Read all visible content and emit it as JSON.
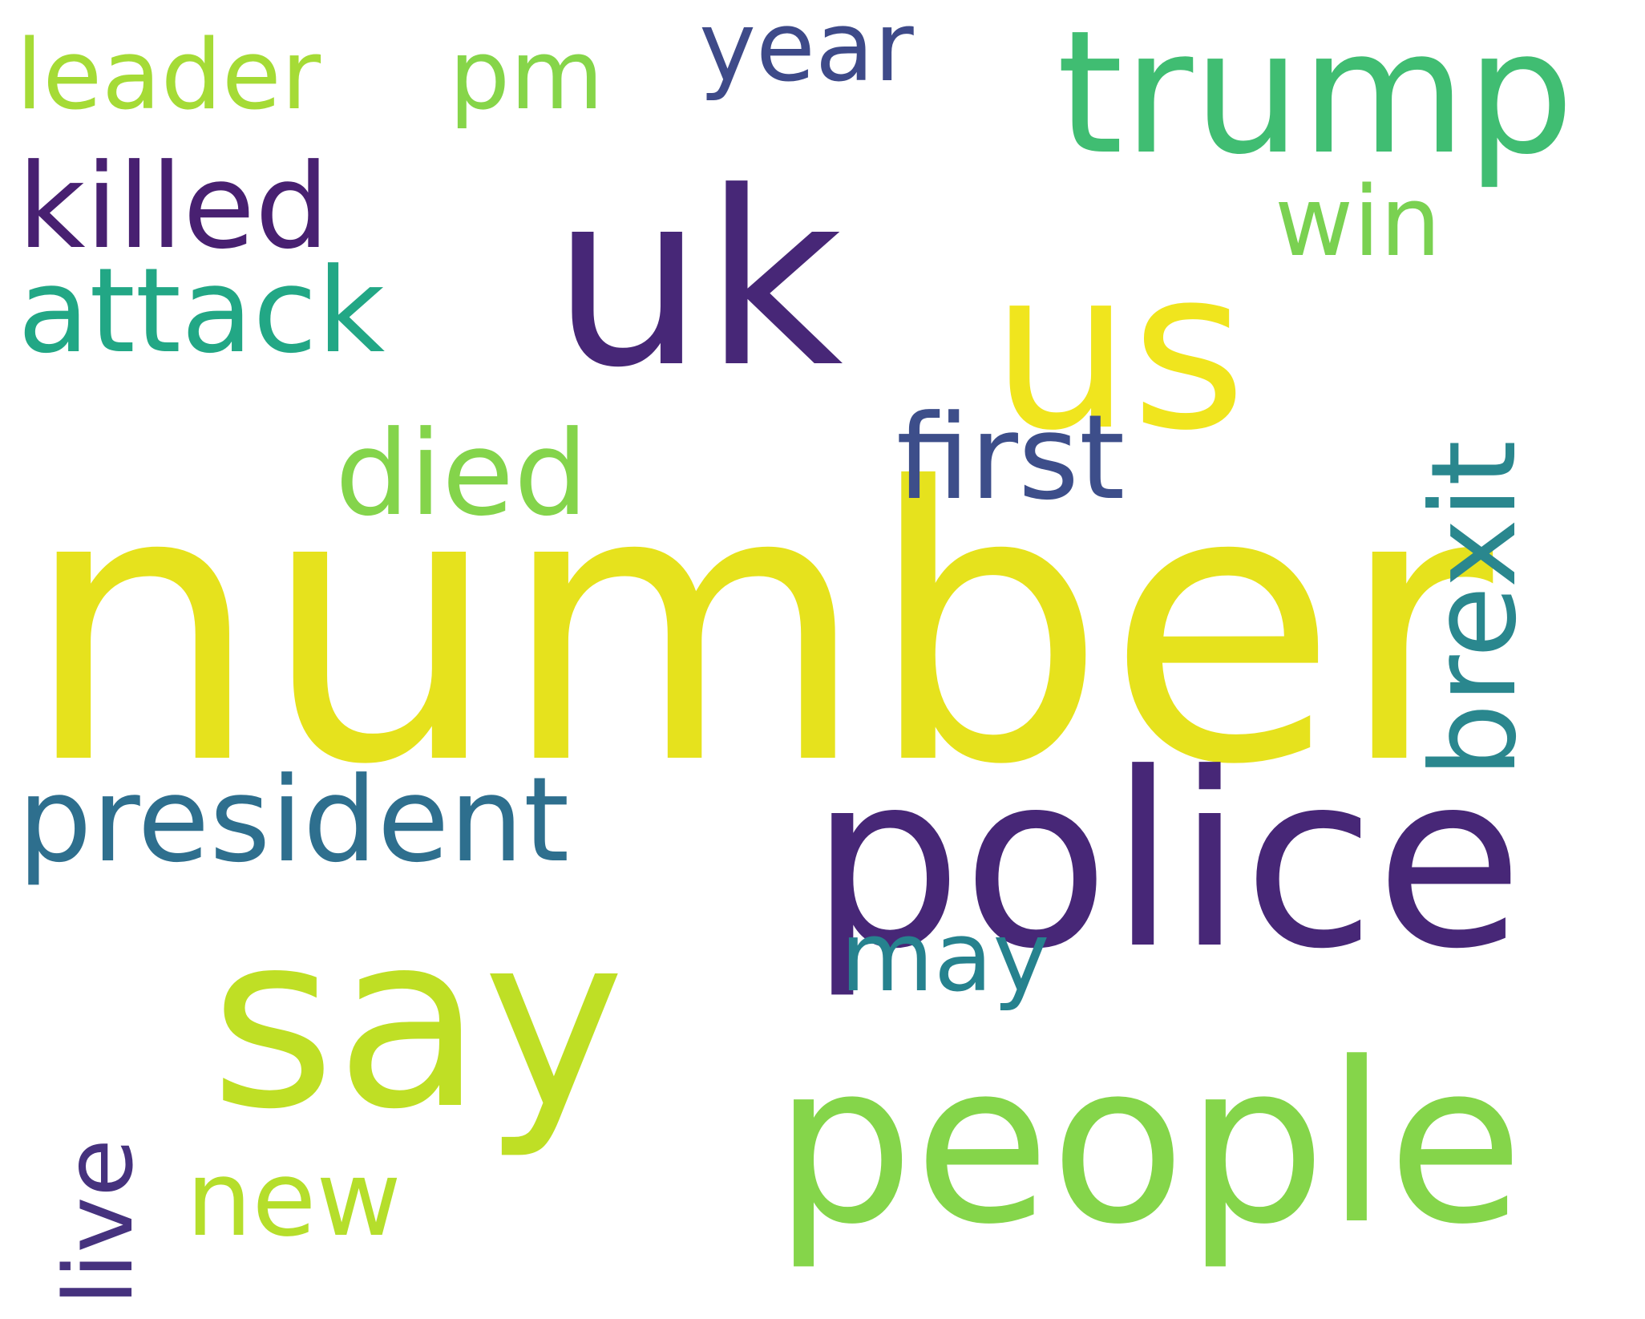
{
  "words": {
    "number": {
      "text": "number",
      "color": "#e6e21d"
    },
    "police": {
      "text": "police",
      "color": "#472777"
    },
    "say": {
      "text": "say",
      "color": "#bfdf25"
    },
    "people": {
      "text": "people",
      "color": "#85d54a"
    },
    "uk": {
      "text": "uk",
      "color": "#472777"
    },
    "us": {
      "text": "us",
      "color": "#f0e51e"
    },
    "trump": {
      "text": "trump",
      "color": "#40bd72"
    },
    "president": {
      "text": "president",
      "color": "#2e6f8e"
    },
    "brexit": {
      "text": "brexit",
      "color": "#2a878e"
    },
    "killed": {
      "text": "killed",
      "color": "#482071"
    },
    "attack": {
      "text": "attack",
      "color": "#22a785"
    },
    "first": {
      "text": "first",
      "color": "#3d4e8a"
    },
    "died": {
      "text": "died",
      "color": "#84d44b"
    },
    "year": {
      "text": "year",
      "color": "#3e4a89"
    },
    "pm": {
      "text": "pm",
      "color": "#86d549"
    },
    "leader": {
      "text": "leader",
      "color": "#a5db36"
    },
    "win": {
      "text": "win",
      "color": "#7ad151"
    },
    "may": {
      "text": "may",
      "color": "#26828e"
    },
    "new": {
      "text": "new",
      "color": "#b5de2b"
    },
    "live": {
      "text": "live",
      "color": "#46327e"
    }
  }
}
